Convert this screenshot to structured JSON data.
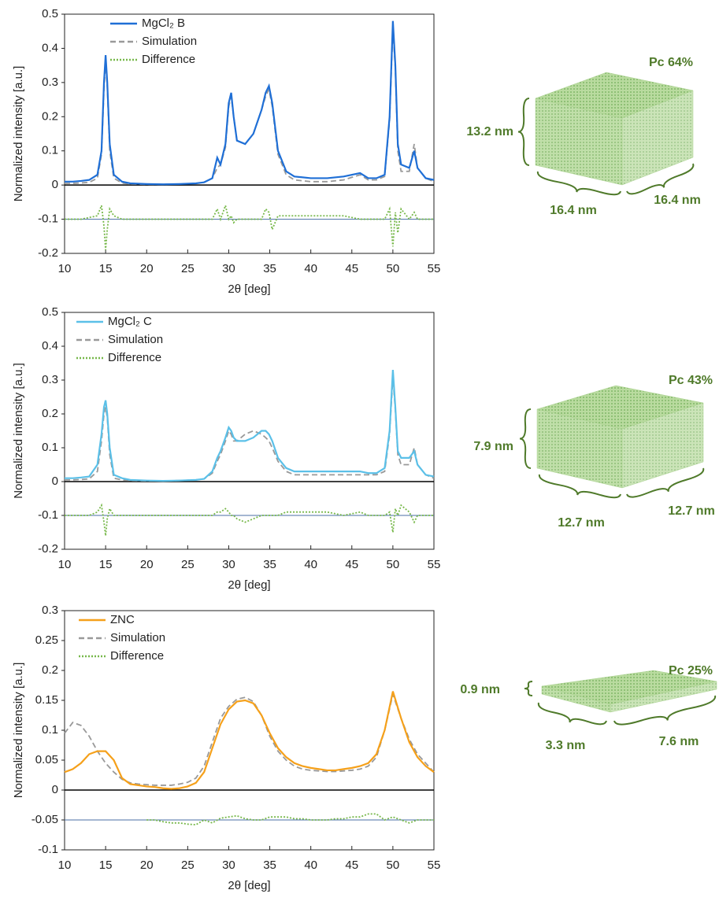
{
  "chart_data": [
    {
      "type": "line",
      "y_label": "Normalized intensity [a.u.]",
      "x_label": "2θ [deg]",
      "xlim": [
        10,
        55
      ],
      "xticks": [
        10,
        15,
        20,
        25,
        30,
        35,
        40,
        45,
        50,
        55
      ],
      "ylim": [
        -0.2,
        0.5
      ],
      "yticks": [
        -0.2,
        -0.1,
        0,
        0.1,
        0.2,
        0.3,
        0.4,
        0.5
      ],
      "reference_line": -0.1,
      "reference_color": "#4a6fa5",
      "x": [
        10,
        11,
        12,
        13,
        14,
        14.5,
        14.8,
        15,
        15.2,
        15.5,
        16,
        17,
        18,
        20,
        22,
        24,
        26,
        27,
        28,
        28.6,
        29,
        29.6,
        30,
        30.3,
        30.6,
        31,
        32,
        33,
        34,
        34.5,
        34.9,
        35.3,
        36,
        37,
        38,
        40,
        42,
        44,
        46,
        47,
        48,
        49,
        49.6,
        50,
        50.3,
        50.6,
        51,
        52,
        52.6,
        53,
        54,
        55
      ],
      "series": [
        {
          "name": "MgCl₂ B",
          "color": "#1f6fd6",
          "style": "solid",
          "values": [
            0.01,
            0.01,
            0.012,
            0.015,
            0.03,
            0.1,
            0.3,
            0.38,
            0.3,
            0.12,
            0.03,
            0.01,
            0.005,
            0.003,
            0.002,
            0.003,
            0.005,
            0.008,
            0.02,
            0.08,
            0.06,
            0.12,
            0.24,
            0.27,
            0.2,
            0.13,
            0.12,
            0.15,
            0.22,
            0.27,
            0.29,
            0.24,
            0.1,
            0.04,
            0.025,
            0.02,
            0.02,
            0.025,
            0.035,
            0.02,
            0.02,
            0.03,
            0.2,
            0.48,
            0.35,
            0.12,
            0.06,
            0.05,
            0.1,
            0.05,
            0.02,
            0.015
          ]
        },
        {
          "name": "Simulation",
          "color": "#999999",
          "style": "dashed",
          "values": [
            0.005,
            0.005,
            0.006,
            0.008,
            0.02,
            0.09,
            0.28,
            0.36,
            0.29,
            0.1,
            0.02,
            0.006,
            0.003,
            0.002,
            0.002,
            0.003,
            0.005,
            0.008,
            0.02,
            0.05,
            0.06,
            0.11,
            0.23,
            0.26,
            0.2,
            0.13,
            0.12,
            0.15,
            0.22,
            0.26,
            0.28,
            0.23,
            0.09,
            0.03,
            0.015,
            0.01,
            0.01,
            0.015,
            0.03,
            0.015,
            0.015,
            0.025,
            0.19,
            0.46,
            0.34,
            0.1,
            0.04,
            0.04,
            0.12,
            0.05,
            0.02,
            0.01
          ]
        },
        {
          "name": "Difference",
          "color": "#77b84a",
          "style": "dotted",
          "values": [
            -0.1,
            -0.1,
            -0.1,
            -0.095,
            -0.09,
            -0.06,
            -0.12,
            -0.19,
            -0.13,
            -0.07,
            -0.09,
            -0.1,
            -0.1,
            -0.1,
            -0.1,
            -0.1,
            -0.1,
            -0.1,
            -0.1,
            -0.07,
            -0.1,
            -0.06,
            -0.1,
            -0.09,
            -0.11,
            -0.1,
            -0.1,
            -0.1,
            -0.1,
            -0.07,
            -0.08,
            -0.13,
            -0.09,
            -0.09,
            -0.09,
            -0.09,
            -0.09,
            -0.09,
            -0.1,
            -0.1,
            -0.1,
            -0.1,
            -0.07,
            -0.18,
            -0.08,
            -0.14,
            -0.07,
            -0.1,
            -0.08,
            -0.1,
            -0.1,
            -0.1
          ]
        }
      ],
      "annotations": {
        "pc": "Pc 64%",
        "height": "13.2 nm",
        "width": "16.4 nm",
        "depth": "16.4 nm"
      }
    },
    {
      "type": "line",
      "y_label": "Normalized intensity [a.u.]",
      "x_label": "2θ [deg]",
      "xlim": [
        10,
        55
      ],
      "xticks": [
        10,
        15,
        20,
        25,
        30,
        35,
        40,
        45,
        50,
        55
      ],
      "ylim": [
        -0.2,
        0.5
      ],
      "yticks": [
        -0.2,
        -0.1,
        0,
        0.1,
        0.2,
        0.3,
        0.4,
        0.5
      ],
      "reference_line": -0.1,
      "reference_color": "#4a6fa5",
      "x": [
        10,
        11,
        12,
        13,
        14,
        14.5,
        14.8,
        15,
        15.2,
        15.5,
        16,
        17,
        18,
        20,
        22,
        24,
        26,
        27,
        28,
        28.6,
        29,
        29.6,
        30,
        30.3,
        30.6,
        31,
        32,
        33,
        34,
        34.5,
        34.9,
        35.3,
        36,
        37,
        38,
        40,
        42,
        44,
        46,
        47,
        48,
        49,
        49.6,
        50,
        50.3,
        50.6,
        51,
        52,
        52.6,
        53,
        54,
        55
      ],
      "series": [
        {
          "name": "MgCl₂ C",
          "color": "#5bc0e8",
          "style": "solid",
          "values": [
            0.01,
            0.01,
            0.012,
            0.015,
            0.05,
            0.14,
            0.22,
            0.24,
            0.2,
            0.1,
            0.02,
            0.01,
            0.005,
            0.003,
            0.002,
            0.003,
            0.005,
            0.008,
            0.03,
            0.07,
            0.09,
            0.13,
            0.16,
            0.15,
            0.13,
            0.12,
            0.12,
            0.13,
            0.15,
            0.15,
            0.14,
            0.12,
            0.07,
            0.04,
            0.03,
            0.03,
            0.03,
            0.03,
            0.03,
            0.025,
            0.025,
            0.04,
            0.15,
            0.33,
            0.22,
            0.09,
            0.07,
            0.07,
            0.09,
            0.05,
            0.02,
            0.015
          ]
        },
        {
          "name": "Simulation",
          "color": "#999999",
          "style": "dashed",
          "values": [
            0.005,
            0.005,
            0.006,
            0.008,
            0.03,
            0.12,
            0.2,
            0.22,
            0.19,
            0.08,
            0.01,
            0.005,
            0.003,
            0.002,
            0.002,
            0.003,
            0.005,
            0.008,
            0.025,
            0.06,
            0.08,
            0.12,
            0.15,
            0.14,
            0.12,
            0.12,
            0.14,
            0.15,
            0.14,
            0.13,
            0.12,
            0.1,
            0.06,
            0.03,
            0.02,
            0.02,
            0.02,
            0.02,
            0.02,
            0.02,
            0.02,
            0.03,
            0.14,
            0.31,
            0.21,
            0.08,
            0.05,
            0.05,
            0.1,
            0.05,
            0.02,
            0.01
          ]
        },
        {
          "name": "Difference",
          "color": "#77b84a",
          "style": "dotted",
          "values": [
            -0.1,
            -0.1,
            -0.1,
            -0.1,
            -0.09,
            -0.07,
            -0.12,
            -0.16,
            -0.11,
            -0.08,
            -0.1,
            -0.1,
            -0.1,
            -0.1,
            -0.1,
            -0.1,
            -0.1,
            -0.1,
            -0.1,
            -0.09,
            -0.09,
            -0.08,
            -0.09,
            -0.1,
            -0.1,
            -0.11,
            -0.12,
            -0.11,
            -0.1,
            -0.1,
            -0.1,
            -0.1,
            -0.1,
            -0.09,
            -0.09,
            -0.09,
            -0.09,
            -0.1,
            -0.09,
            -0.1,
            -0.1,
            -0.1,
            -0.09,
            -0.15,
            -0.08,
            -0.1,
            -0.07,
            -0.09,
            -0.12,
            -0.1,
            -0.1,
            -0.1
          ]
        }
      ],
      "annotations": {
        "pc": "Pc 43%",
        "height": "7.9 nm",
        "width": "12.7 nm",
        "depth": "12.7 nm"
      }
    },
    {
      "type": "line",
      "y_label": "Normalized intensity [a.u.]",
      "x_label": "2θ [deg]",
      "xlim": [
        10,
        55
      ],
      "xticks": [
        10,
        15,
        20,
        25,
        30,
        35,
        40,
        45,
        50,
        55
      ],
      "ylim": [
        -0.1,
        0.3
      ],
      "yticks": [
        -0.1,
        -0.05,
        0,
        0.05,
        0.1,
        0.15,
        0.2,
        0.25,
        0.3
      ],
      "reference_line": -0.05,
      "reference_color": "#4a6fa5",
      "x": [
        10,
        11,
        12,
        13,
        14,
        15,
        16,
        17,
        18,
        19,
        20,
        21,
        22,
        23,
        24,
        25,
        26,
        27,
        28,
        29,
        30,
        31,
        32,
        33,
        34,
        35,
        36,
        37,
        38,
        39,
        40,
        41,
        42,
        43,
        44,
        45,
        46,
        47,
        48,
        49,
        50,
        51,
        52,
        53,
        54,
        55
      ],
      "series": [
        {
          "name": "ZNC",
          "color": "#f5a01a",
          "style": "solid",
          "values": [
            0.03,
            0.035,
            0.045,
            0.06,
            0.065,
            0.065,
            0.05,
            0.02,
            0.01,
            0.008,
            0.006,
            0.005,
            0.003,
            0.002,
            0.003,
            0.006,
            0.012,
            0.03,
            0.07,
            0.11,
            0.135,
            0.148,
            0.15,
            0.145,
            0.125,
            0.095,
            0.07,
            0.055,
            0.045,
            0.04,
            0.037,
            0.035,
            0.033,
            0.033,
            0.035,
            0.037,
            0.04,
            0.045,
            0.06,
            0.1,
            0.165,
            0.12,
            0.08,
            0.055,
            0.04,
            0.03
          ]
        },
        {
          "name": "Simulation",
          "color": "#999999",
          "style": "dashed",
          "values": [
            0.095,
            0.113,
            0.108,
            0.09,
            0.065,
            0.045,
            0.03,
            0.018,
            0.012,
            0.01,
            0.009,
            0.008,
            0.008,
            0.008,
            0.01,
            0.013,
            0.02,
            0.04,
            0.08,
            0.12,
            0.14,
            0.152,
            0.155,
            0.148,
            0.125,
            0.09,
            0.065,
            0.05,
            0.04,
            0.035,
            0.033,
            0.032,
            0.031,
            0.031,
            0.032,
            0.033,
            0.035,
            0.04,
            0.055,
            0.1,
            0.16,
            0.12,
            0.085,
            0.06,
            0.045,
            0.03
          ]
        },
        {
          "name": "Difference",
          "color": "#77b84a",
          "style": "dotted",
          "values": [
            null,
            null,
            null,
            null,
            null,
            null,
            null,
            null,
            null,
            null,
            -0.05,
            -0.05,
            -0.053,
            -0.055,
            -0.055,
            -0.057,
            -0.058,
            -0.05,
            -0.055,
            -0.047,
            -0.045,
            -0.043,
            -0.048,
            -0.05,
            -0.05,
            -0.045,
            -0.045,
            -0.045,
            -0.048,
            -0.048,
            -0.05,
            -0.05,
            -0.05,
            -0.048,
            -0.048,
            -0.045,
            -0.045,
            -0.04,
            -0.04,
            -0.05,
            -0.045,
            -0.05,
            -0.055,
            -0.05,
            -0.05,
            -0.05
          ]
        }
      ],
      "annotations": {
        "pc": "Pc 25%",
        "height": "0.9 nm",
        "width": "3.3 nm",
        "depth": "7.6 nm"
      }
    }
  ]
}
